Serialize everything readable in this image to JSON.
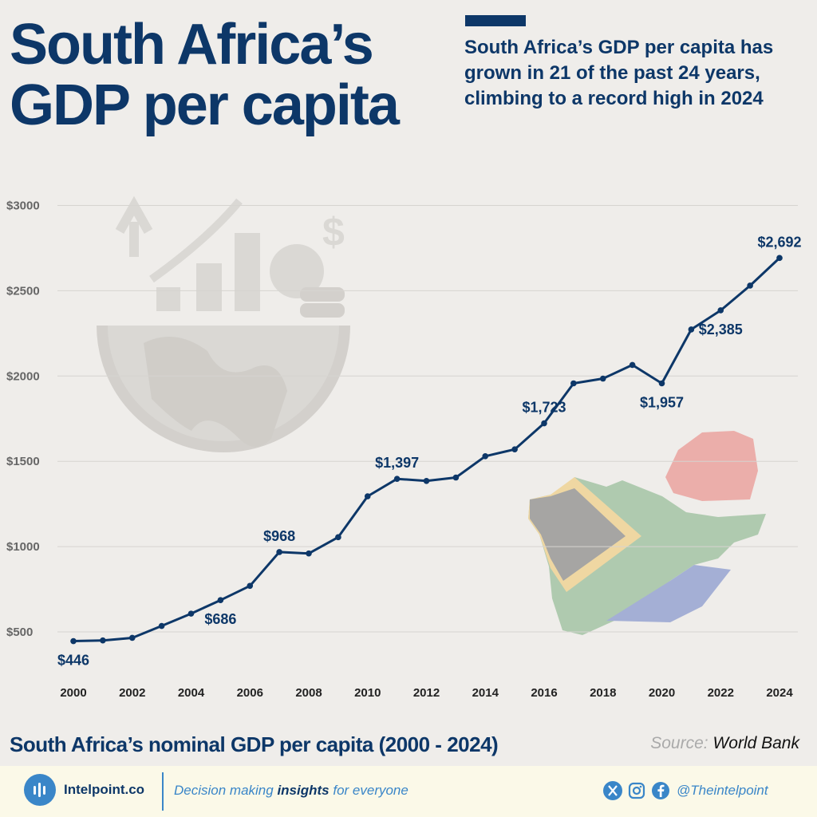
{
  "header": {
    "title": "South Africa’s GDP per capita",
    "subtitle": "South Africa’s GDP per capita has grown in 21 of the past 24 years, climbing to a record high in 2024"
  },
  "chart_data": {
    "type": "line",
    "x": [
      2000,
      2001,
      2002,
      2003,
      2004,
      2005,
      2006,
      2007,
      2008,
      2009,
      2010,
      2011,
      2012,
      2013,
      2014,
      2015,
      2016,
      2017,
      2018,
      2019,
      2020,
      2021,
      2022,
      2023,
      2024
    ],
    "series": [
      {
        "values": [
          446,
          450,
          465,
          535,
          607,
          686,
          770,
          968,
          960,
          1055,
          1295,
          1397,
          1385,
          1405,
          1530,
          1570,
          1723,
          1957,
          1985,
          2065,
          1957,
          2273,
          2385,
          2530,
          2692
        ]
      }
    ],
    "labeled_points": [
      {
        "year": 2000,
        "text": "$446",
        "pos": "below"
      },
      {
        "year": 2005,
        "text": "$686",
        "pos": "below"
      },
      {
        "year": 2007,
        "text": "$968",
        "pos": "above"
      },
      {
        "year": 2011,
        "text": "$1,397",
        "pos": "above"
      },
      {
        "year": 2016,
        "text": "$1,723",
        "pos": "above"
      },
      {
        "year": 2020,
        "text": "$1,957",
        "pos": "below"
      },
      {
        "year": 2022,
        "text": "$2,385",
        "pos": "below"
      },
      {
        "year": 2024,
        "text": "$2,692",
        "pos": "above"
      }
    ],
    "xticks": [
      "2000",
      "2002",
      "2004",
      "2006",
      "2008",
      "2010",
      "2012",
      "2014",
      "2016",
      "2018",
      "2020",
      "2022",
      "2024"
    ],
    "yticks": [
      500,
      1000,
      1500,
      2000,
      2500,
      3000
    ],
    "ytick_labels": [
      "$500",
      "$1000",
      "$1500",
      "$2000",
      "$2500",
      "$3000"
    ],
    "ylim": [
      450,
      3000
    ],
    "xlim": [
      2000,
      2024
    ],
    "grid": true,
    "line_color": "#0d3768"
  },
  "caption": "South Africa’s nominal GDP per capita (2000 - 2024)",
  "source": {
    "label": "Source:",
    "value": "World Bank"
  },
  "footer": {
    "brand": "Intelpoint.co",
    "tagline_pre": "Decision making ",
    "tagline_bold": "insights",
    "tagline_post": " for everyone",
    "handle": "@Theintelpoint",
    "icons": [
      "x-icon",
      "instagram-icon",
      "facebook-icon"
    ]
  }
}
